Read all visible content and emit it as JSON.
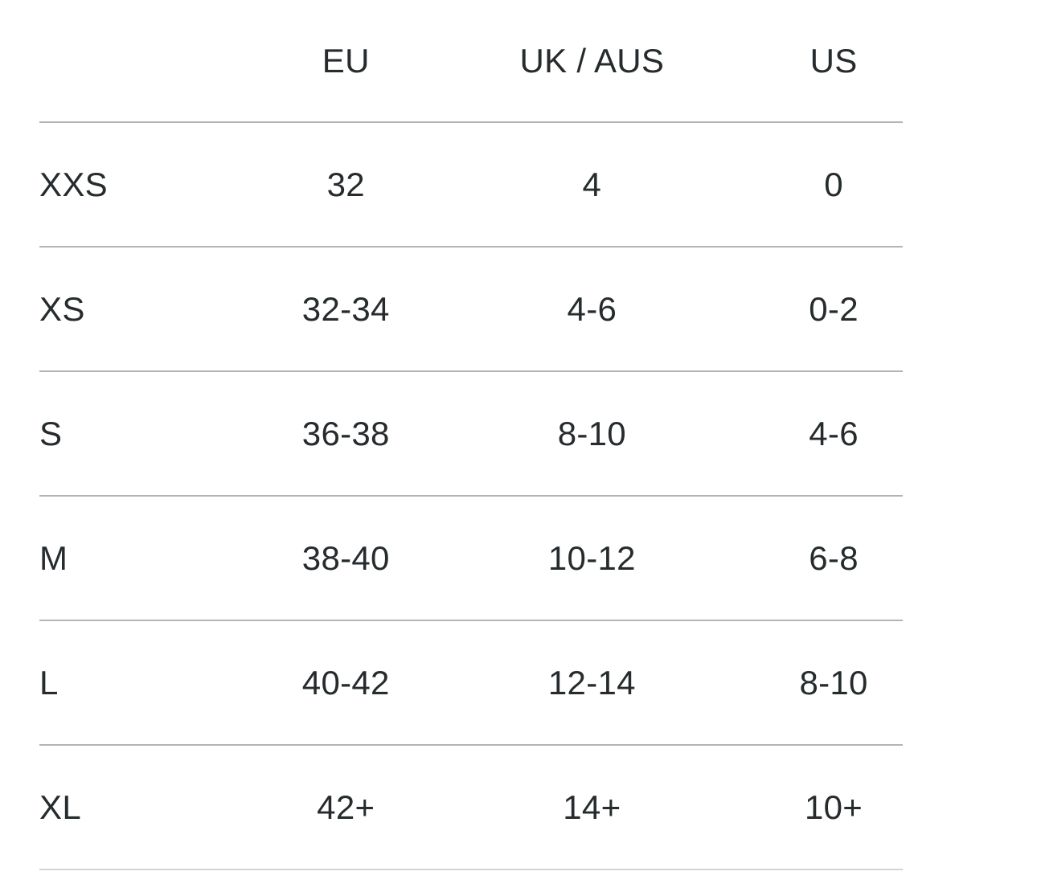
{
  "size_chart": {
    "columns": {
      "size": "",
      "eu": "EU",
      "uk_aus": "UK / AUS",
      "us": "US"
    },
    "rows": [
      {
        "size": "XXS",
        "eu": "32",
        "uk_aus": "4",
        "us": "0"
      },
      {
        "size": "XS",
        "eu": "32-34",
        "uk_aus": "4-6",
        "us": "0-2"
      },
      {
        "size": "S",
        "eu": "36-38",
        "uk_aus": "8-10",
        "us": "4-6"
      },
      {
        "size": "M",
        "eu": "38-40",
        "uk_aus": "10-12",
        "us": "6-8"
      },
      {
        "size": "L",
        "eu": "40-42",
        "uk_aus": "12-14",
        "us": "8-10"
      },
      {
        "size": "XL",
        "eu": "42+",
        "uk_aus": "14+",
        "us": "10+"
      }
    ]
  },
  "colors": {
    "text": "#262b2d",
    "divider": "#b4b4b4",
    "divider_light": "#d4d4d4",
    "background": "#ffffff"
  }
}
